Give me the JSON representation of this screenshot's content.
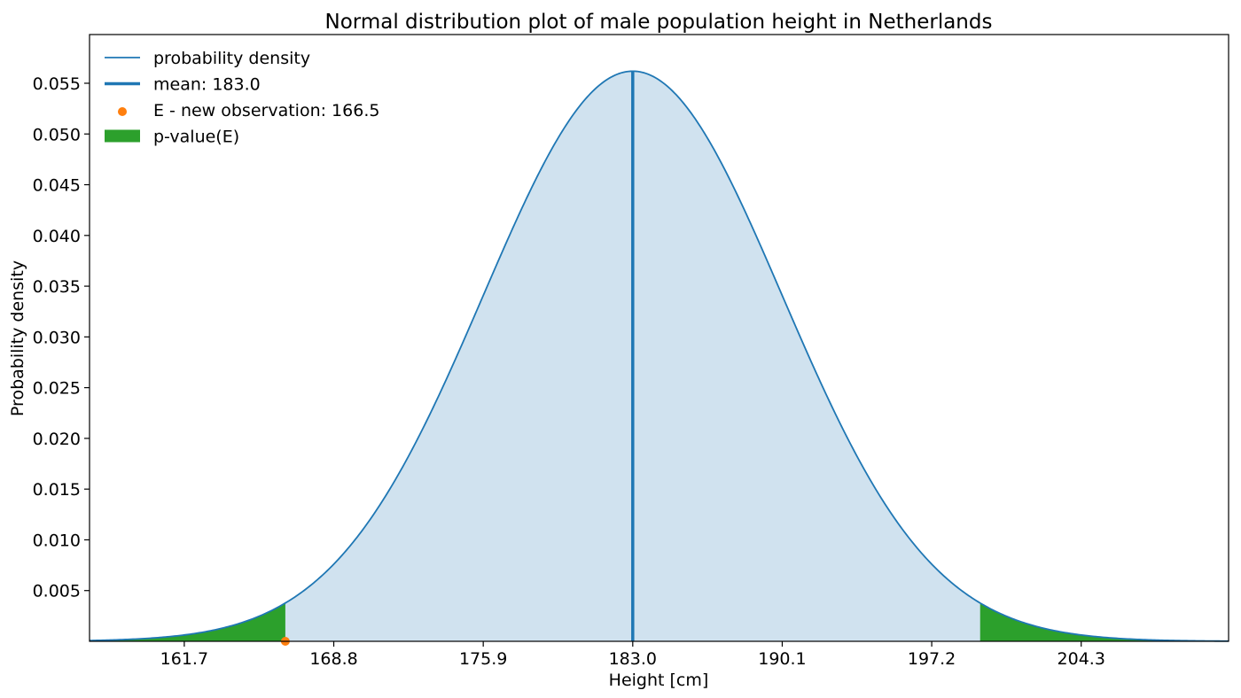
{
  "chart_data": {
    "type": "area",
    "title": "Normal distribution plot of male population height in Netherlands",
    "xlabel": "Height [cm]",
    "ylabel": "Probability density",
    "distribution": {
      "mean": 183.0,
      "std": 7.1
    },
    "xlim": [
      157.2,
      211.3
    ],
    "ylim": [
      0.0,
      0.0598
    ],
    "xticks": [
      161.7,
      168.8,
      175.9,
      183.0,
      190.1,
      197.2,
      204.3
    ],
    "xtick_labels": [
      "161.7",
      "168.8",
      "175.9",
      "183.0",
      "190.1",
      "197.2",
      "204.3"
    ],
    "yticks": [
      0.005,
      0.01,
      0.015,
      0.02,
      0.025,
      0.03,
      0.035,
      0.04,
      0.045,
      0.05,
      0.055
    ],
    "ytick_labels": [
      "0.005",
      "0.010",
      "0.015",
      "0.020",
      "0.025",
      "0.030",
      "0.035",
      "0.040",
      "0.045",
      "0.050",
      "0.055"
    ],
    "observation": {
      "x": 166.5,
      "y": 0.0
    },
    "p_value_regions": [
      [
        157.2,
        166.5
      ],
      [
        199.5,
        211.3
      ]
    ],
    "grid": false,
    "legend_position": "top-left",
    "legend": [
      {
        "label": "probability density",
        "marker": "line"
      },
      {
        "label": "mean: 183.0",
        "marker": "thick-line"
      },
      {
        "label": "E - new observation: 166.5",
        "marker": "dot"
      },
      {
        "label": "p-value(E)",
        "marker": "patch"
      }
    ],
    "colors": {
      "curve": "#1f77b4",
      "fill": "#d0e2ef",
      "mean": "#1f77b4",
      "observation": "#ff7f0e",
      "p_value": "#2ca02c"
    }
  }
}
